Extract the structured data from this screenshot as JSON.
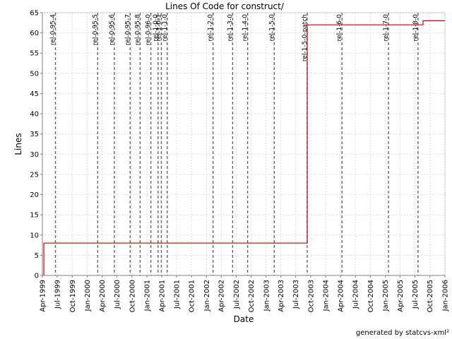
{
  "chart_data": {
    "type": "line",
    "title": "Lines Of Code for construct/",
    "xlabel": "Date",
    "ylabel": "Lines",
    "ylim": [
      0,
      65
    ],
    "xlim": [
      "1999-04-01",
      "2006-01-01"
    ],
    "y_ticks": [
      0,
      5,
      10,
      15,
      20,
      25,
      30,
      35,
      40,
      45,
      50,
      55,
      60,
      65
    ],
    "x_ticks": [
      {
        "date": "1999-04-01",
        "label": "Apr-1999"
      },
      {
        "date": "1999-07-01",
        "label": "Jul-1999"
      },
      {
        "date": "1999-10-01",
        "label": "Oct-1999"
      },
      {
        "date": "2000-01-01",
        "label": "Jan-2000"
      },
      {
        "date": "2000-04-01",
        "label": "Apr-2000"
      },
      {
        "date": "2000-07-01",
        "label": "Jul-2000"
      },
      {
        "date": "2000-10-01",
        "label": "Oct-2000"
      },
      {
        "date": "2001-01-01",
        "label": "Jan-2001"
      },
      {
        "date": "2001-04-01",
        "label": "Apr-2001"
      },
      {
        "date": "2001-07-01",
        "label": "Jul-2001"
      },
      {
        "date": "2001-10-01",
        "label": "Oct-2001"
      },
      {
        "date": "2002-01-01",
        "label": "Jan-2002"
      },
      {
        "date": "2002-04-01",
        "label": "Apr-2002"
      },
      {
        "date": "2002-07-01",
        "label": "Jul-2002"
      },
      {
        "date": "2002-10-01",
        "label": "Oct-2002"
      },
      {
        "date": "2003-01-01",
        "label": "Jan-2003"
      },
      {
        "date": "2003-04-01",
        "label": "Apr-2003"
      },
      {
        "date": "2003-07-01",
        "label": "Jul-2003"
      },
      {
        "date": "2003-10-01",
        "label": "Oct-2003"
      },
      {
        "date": "2004-01-01",
        "label": "Jan-2004"
      },
      {
        "date": "2004-04-01",
        "label": "Apr-2004"
      },
      {
        "date": "2004-07-01",
        "label": "Jul-2004"
      },
      {
        "date": "2004-10-01",
        "label": "Oct-2004"
      },
      {
        "date": "2005-01-01",
        "label": "Jan-2005"
      },
      {
        "date": "2005-04-01",
        "label": "Apr-2005"
      },
      {
        "date": "2005-07-01",
        "label": "Jul-2005"
      },
      {
        "date": "2005-10-01",
        "label": "Oct-2005"
      },
      {
        "date": "2006-01-01",
        "label": "Jan-2006"
      }
    ],
    "grid": true,
    "step_series": {
      "color": "#cc0000",
      "points": [
        {
          "date": "1999-04-10",
          "value": 0
        },
        {
          "date": "1999-04-10",
          "value": 8
        },
        {
          "date": "2003-09-10",
          "value": 8
        },
        {
          "date": "2003-09-10",
          "value": 62
        },
        {
          "date": "2005-08-20",
          "value": 62
        },
        {
          "date": "2005-08-20",
          "value": 63
        },
        {
          "date": "2006-01-01",
          "value": 63
        }
      ]
    },
    "tags": [
      {
        "date": "1999-06-20",
        "label": "rel-0-95-4"
      },
      {
        "date": "2000-03-05",
        "label": "rel-0-95-5"
      },
      {
        "date": "2000-06-15",
        "label": "rel-0-95-6"
      },
      {
        "date": "2000-09-20",
        "label": "rel-0-95-7"
      },
      {
        "date": "2000-11-20",
        "label": "rel-0-95-8"
      },
      {
        "date": "2001-01-25",
        "label": "rel-0-96-0"
      },
      {
        "date": "2001-03-10",
        "label": "rel-1-0-0"
      },
      {
        "date": "2001-03-30",
        "label": "rel-1-0-1"
      },
      {
        "date": "2001-05-05",
        "label": "rel-1-1-0"
      },
      {
        "date": "2002-02-10",
        "label": "rel-1-2-0"
      },
      {
        "date": "2002-06-10",
        "label": "rel-1-3-0"
      },
      {
        "date": "2002-09-10",
        "label": "rel-1-4-0"
      },
      {
        "date": "2003-02-20",
        "label": "rel-1-5-0"
      },
      {
        "date": "2003-09-10",
        "label": "rel-1-5-0-patch"
      },
      {
        "date": "2004-04-10",
        "label": "rel-1-6-0"
      },
      {
        "date": "2005-01-20",
        "label": "rel-1-7-0"
      },
      {
        "date": "2005-07-20",
        "label": "rel-1-8-0"
      }
    ],
    "credit": "generated by statcvs-xml²"
  }
}
